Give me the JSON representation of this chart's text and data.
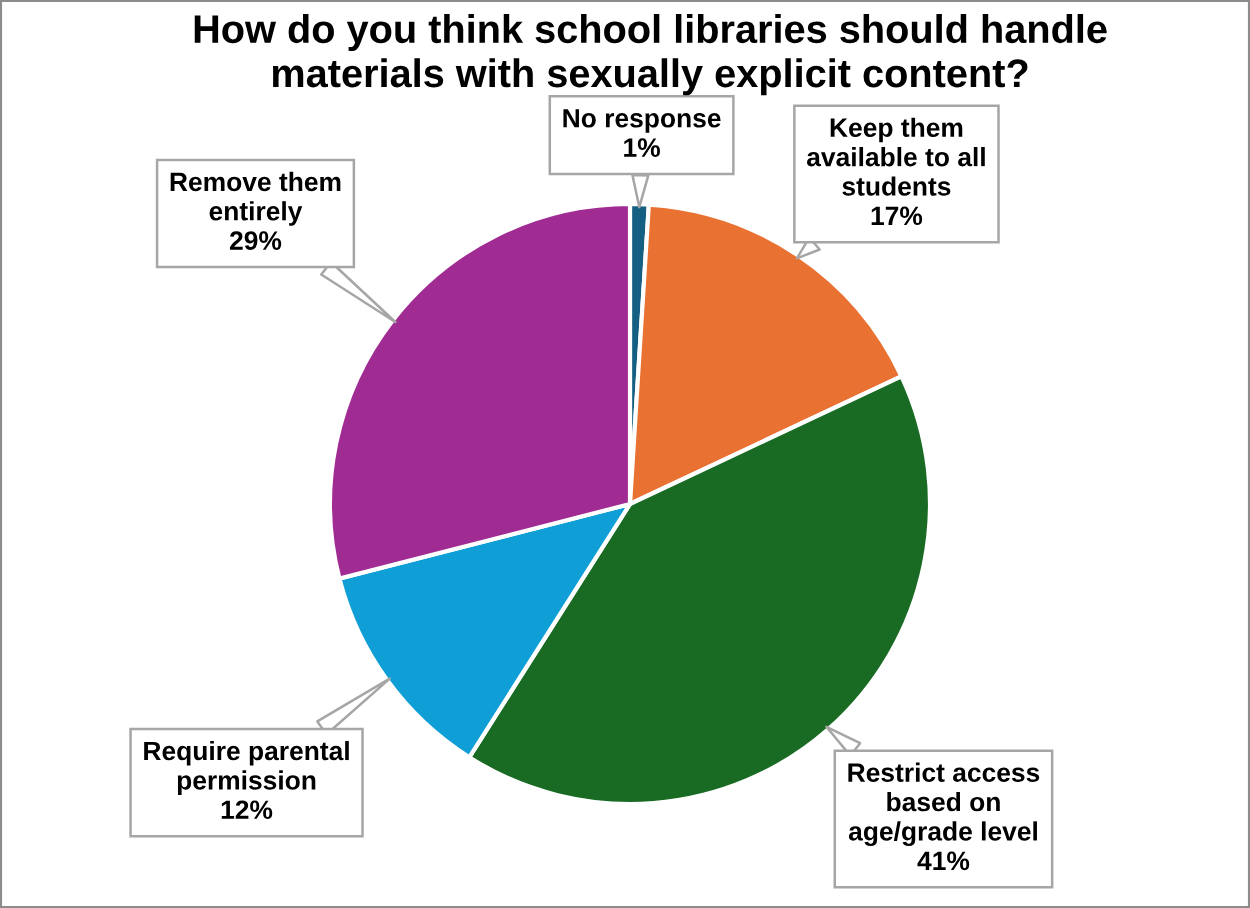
{
  "chart_data": {
    "type": "pie",
    "title": "How do you think school libraries should handle\nmaterials with sexually explicit content?",
    "categories": [
      "No response",
      "Keep them\navailable to all\nstudents",
      "Restrict access\nbased on\nage/grade level",
      "Require parental\npermission",
      "Remove them\nentirely"
    ],
    "values": [
      1,
      17,
      41,
      12,
      29
    ],
    "value_labels": [
      "1%",
      "17%",
      "41%",
      "12%",
      "29%"
    ],
    "colors": [
      "#156082",
      "#e97132",
      "#196b24",
      "#0f9ed5",
      "#a02b93"
    ]
  }
}
